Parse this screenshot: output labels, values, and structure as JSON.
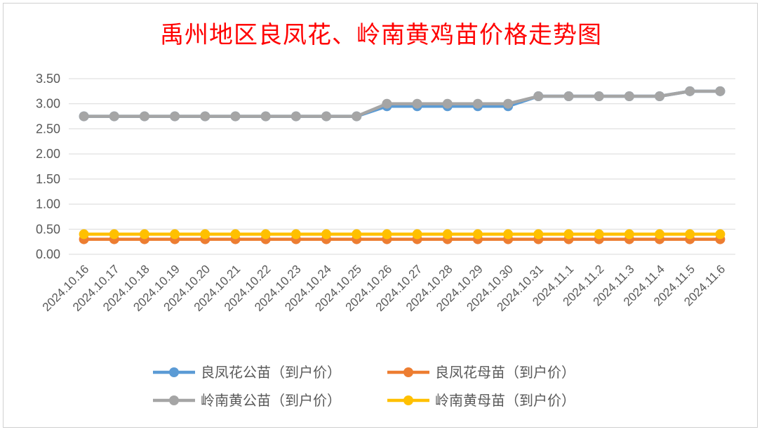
{
  "chart_data": {
    "type": "line",
    "title": "禹州地区良凤花、岭南黄鸡苗价格走势图",
    "xlabel": "",
    "ylabel": "",
    "ylim": [
      0,
      3.5
    ],
    "yticks": [
      "0.00",
      "0.50",
      "1.00",
      "1.50",
      "2.00",
      "2.50",
      "3.00",
      "3.50"
    ],
    "grid": true,
    "legend_position": "bottom",
    "categories": [
      "2024.10.16",
      "2024.10.17",
      "2024.10.18",
      "2024.10.19",
      "2024.10.20",
      "2024.10.21",
      "2024.10.22",
      "2024.10.23",
      "2024.10.24",
      "2024.10.25",
      "2024.10.26",
      "2024.10.27",
      "2024.10.28",
      "2024.10.29",
      "2024.10.30",
      "2024.10.31",
      "2024.11.1",
      "2024.11.2",
      "2024.11.3",
      "2024.11.4",
      "2024.11.5",
      "2024.11.6"
    ],
    "series": [
      {
        "name": "良凤花公苗（到户价）",
        "color": "#5b9bd5",
        "values": [
          2.75,
          2.75,
          2.75,
          2.75,
          2.75,
          2.75,
          2.75,
          2.75,
          2.75,
          2.75,
          2.95,
          2.95,
          2.95,
          2.95,
          2.95,
          3.15,
          3.15,
          3.15,
          3.15,
          3.15,
          3.25,
          3.25
        ]
      },
      {
        "name": "良凤花母苗（到户价）",
        "color": "#ed7d31",
        "values": [
          0.3,
          0.3,
          0.3,
          0.3,
          0.3,
          0.3,
          0.3,
          0.3,
          0.3,
          0.3,
          0.3,
          0.3,
          0.3,
          0.3,
          0.3,
          0.3,
          0.3,
          0.3,
          0.3,
          0.3,
          0.3,
          0.3
        ]
      },
      {
        "name": "岭南黄公苗（到户价）",
        "color": "#a5a5a5",
        "values": [
          2.75,
          2.75,
          2.75,
          2.75,
          2.75,
          2.75,
          2.75,
          2.75,
          2.75,
          2.75,
          3.0,
          3.0,
          3.0,
          3.0,
          3.0,
          3.15,
          3.15,
          3.15,
          3.15,
          3.15,
          3.25,
          3.25
        ]
      },
      {
        "name": "岭南黄母苗（到户价）",
        "color": "#ffc000",
        "values": [
          0.4,
          0.4,
          0.4,
          0.4,
          0.4,
          0.4,
          0.4,
          0.4,
          0.4,
          0.4,
          0.4,
          0.4,
          0.4,
          0.4,
          0.4,
          0.4,
          0.4,
          0.4,
          0.4,
          0.4,
          0.4,
          0.4
        ]
      }
    ]
  }
}
